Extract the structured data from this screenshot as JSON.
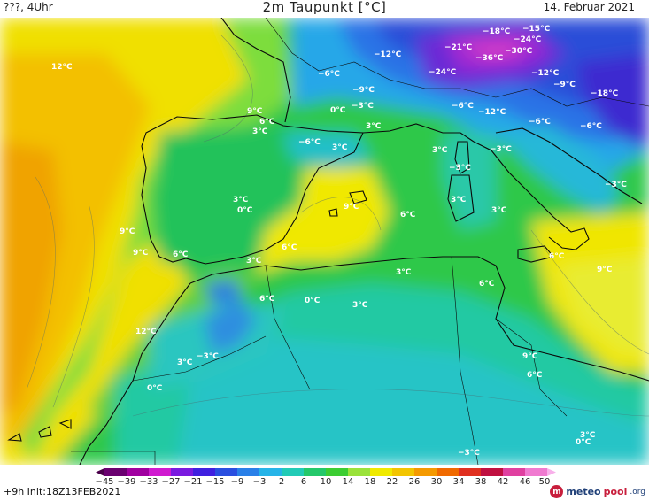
{
  "header": {
    "left": "???, 4Uhr",
    "title": "2m Taupunkt [°C]",
    "date": "14. Februar 2021"
  },
  "map": {
    "labels": [
      "12°C",
      "−18°C",
      "−15°C",
      "−24°C",
      "−21°C",
      "−36°C",
      "−30°C",
      "−12°C",
      "−24°C",
      "−6°C",
      "−12°C",
      "−9°C",
      "−18°C",
      "−9°C",
      "−3°C",
      "0°C",
      "−6°C",
      "−12°C",
      "−6°C",
      "−6°C",
      "9°C",
      "6°C",
      "3°C",
      "3°C",
      "−6°C",
      "3°C",
      "−3°C",
      "3°C",
      "−3°C",
      "−3°C",
      "3°C",
      "0°C",
      "3°C",
      "9°C",
      "6°C",
      "3°C",
      "9°C",
      "9°C",
      "6°C",
      "6°C",
      "3°C",
      "6°C",
      "3°C",
      "6°C",
      "9°C",
      "6°C",
      "0°C",
      "3°C",
      "12°C",
      "3°C",
      "−3°C",
      "0°C",
      "9°C",
      "6°C",
      "3°C",
      "0°C",
      "−3°C"
    ]
  },
  "colorbar": {
    "ticks": [
      "−45",
      "−39",
      "−33",
      "−27",
      "−21",
      "−15",
      "−9",
      "−3",
      "2",
      "6",
      "10",
      "14",
      "18",
      "22",
      "26",
      "30",
      "34",
      "38",
      "42",
      "46",
      "50"
    ]
  },
  "footer": {
    "init": "+9h Init:18Z13FEB2021",
    "logo_main": "meteo",
    "logo_accent": "pool",
    "logo_suffix": ".org"
  }
}
